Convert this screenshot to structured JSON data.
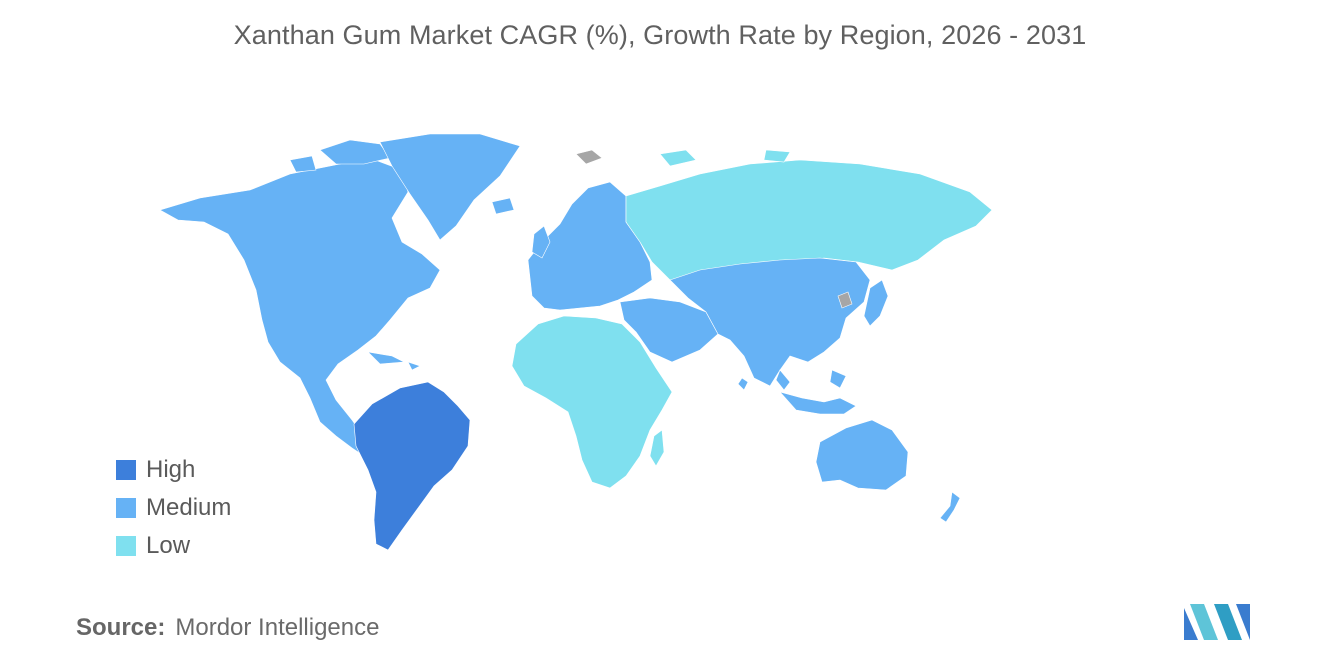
{
  "title": "Xanthan Gum Market CAGR (%), Growth Rate by Region, 2026 - 2031",
  "colors": {
    "high": "#3d7fdb",
    "medium": "#66b2f5",
    "low": "#7fe0ef",
    "no_data": "#a6a6a6"
  },
  "legend": [
    {
      "label": "High",
      "level": "high"
    },
    {
      "label": "Medium",
      "level": "medium"
    },
    {
      "label": "Low",
      "level": "low"
    }
  ],
  "regions": {
    "north_america": "medium",
    "south_america": "high",
    "europe": "medium",
    "russia_central_asia": "low",
    "asia_pacific": "medium",
    "middle_east": "medium",
    "africa": "low",
    "oceania": "medium"
  },
  "source": {
    "label": "Source:",
    "value": "Mordor Intelligence"
  },
  "logo_icon": "mordor-intelligence-logo-icon"
}
